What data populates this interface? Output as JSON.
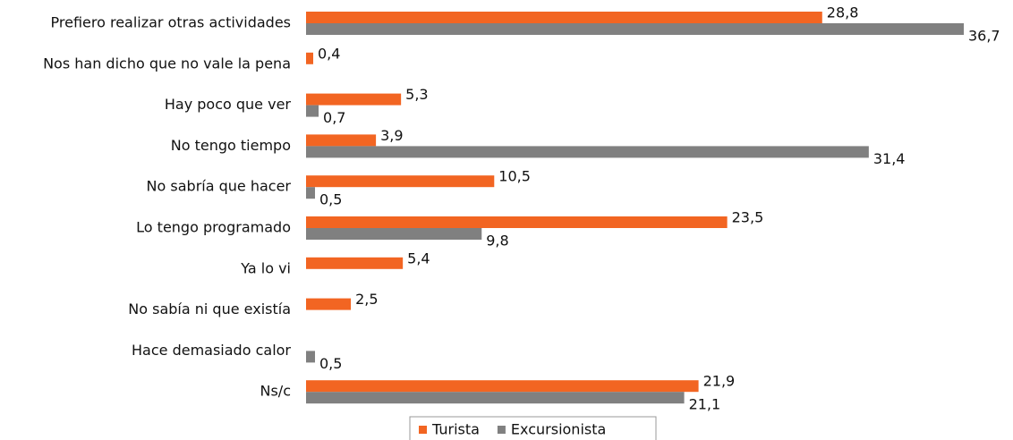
{
  "chart_data": {
    "type": "bar",
    "orientation": "horizontal",
    "categories": [
      "Prefiero realizar otras actividades",
      "Nos han dicho que no vale la pena",
      "Hay poco que ver",
      "No tengo tiempo",
      "No sabría que hacer",
      "Lo tengo programado",
      "Ya lo vi",
      "No sabía ni que existía",
      "Hace demasiado calor",
      "Ns/c"
    ],
    "series": [
      {
        "name": "Turista",
        "color": "#f26522",
        "values": [
          28.8,
          0.4,
          5.3,
          3.9,
          10.5,
          23.5,
          5.4,
          2.5,
          null,
          21.9
        ],
        "value_labels": [
          "28,8",
          "0,4",
          "5,3",
          "3,9",
          "10,5",
          "23,5",
          "5,4",
          "2,5",
          null,
          "21,9"
        ]
      },
      {
        "name": "Excursionista",
        "color": "#808080",
        "values": [
          36.7,
          null,
          0.7,
          31.4,
          0.5,
          9.8,
          null,
          null,
          0.5,
          21.1
        ],
        "value_labels": [
          "36,7",
          null,
          "0,7",
          "31,4",
          "0,5",
          "9,8",
          null,
          null,
          "0,5",
          "21,1"
        ]
      }
    ],
    "xlim": [
      0,
      37
    ],
    "legend": "bottom"
  }
}
